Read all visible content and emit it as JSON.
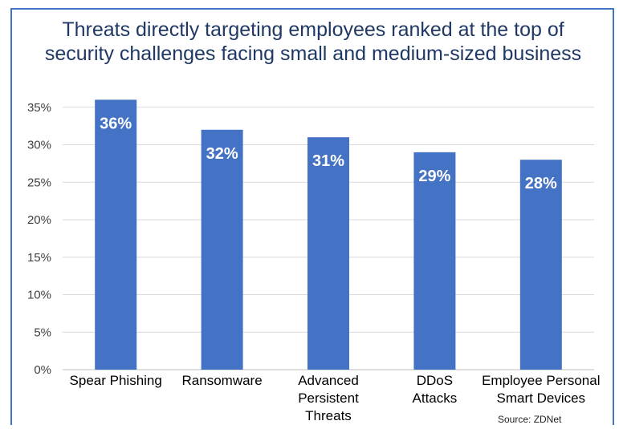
{
  "chart_data": {
    "type": "bar",
    "title_lines": [
      "Threats directly targeting employees ranked at the top of",
      "security challenges facing small and medium-sized business"
    ],
    "categories": [
      [
        "Spear Phishing"
      ],
      [
        "Ransomware"
      ],
      [
        "Advanced",
        "Persistent",
        "Threats"
      ],
      [
        "DDoS",
        "Attacks"
      ],
      [
        "Employee Personal",
        "Smart Devices"
      ]
    ],
    "values": [
      36,
      32,
      31,
      29,
      28
    ],
    "value_labels": [
      "36%",
      "32%",
      "31%",
      "29%",
      "28%"
    ],
    "ylim": [
      0,
      35
    ],
    "y_ticks": [
      "0%",
      "5%",
      "10%",
      "15%",
      "20%",
      "25%",
      "30%",
      "35%"
    ],
    "bar_color": "#4472c4",
    "grid": true,
    "source": "Source: ZDNet"
  }
}
